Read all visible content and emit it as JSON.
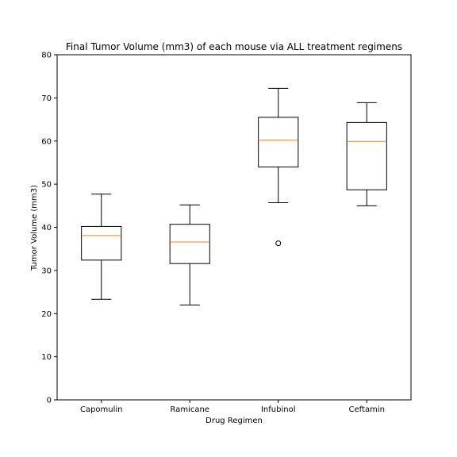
{
  "chart_data": {
    "type": "box",
    "title": "Final Tumor Volume (mm3) of each mouse via ALL treatment regimens",
    "xlabel": "Drug Regimen",
    "ylabel": "Tumor Volume (mm3)",
    "ylim": [
      0,
      80
    ],
    "yticks": [
      0,
      10,
      20,
      30,
      40,
      50,
      60,
      70,
      80
    ],
    "grid": false,
    "categories": [
      "Capomulin",
      "Ramicane",
      "Infubinol",
      "Ceftamin"
    ],
    "boxes": [
      {
        "name": "Capomulin",
        "whisker_low": 23.3,
        "q1": 32.4,
        "median": 38.1,
        "q3": 40.2,
        "whisker_high": 47.7,
        "outliers": []
      },
      {
        "name": "Ramicane",
        "whisker_low": 22.0,
        "q1": 31.6,
        "median": 36.6,
        "q3": 40.7,
        "whisker_high": 45.2,
        "outliers": []
      },
      {
        "name": "Infubinol",
        "whisker_low": 45.7,
        "q1": 54.0,
        "median": 60.2,
        "q3": 65.5,
        "whisker_high": 72.2,
        "outliers": [
          36.3
        ]
      },
      {
        "name": "Ceftamin",
        "whisker_low": 45.0,
        "q1": 48.7,
        "median": 59.9,
        "q3": 64.3,
        "whisker_high": 68.9,
        "outliers": []
      }
    ],
    "colors": {
      "box": "#000000",
      "median": "#ff7f0e",
      "outlier": "#000000"
    }
  }
}
